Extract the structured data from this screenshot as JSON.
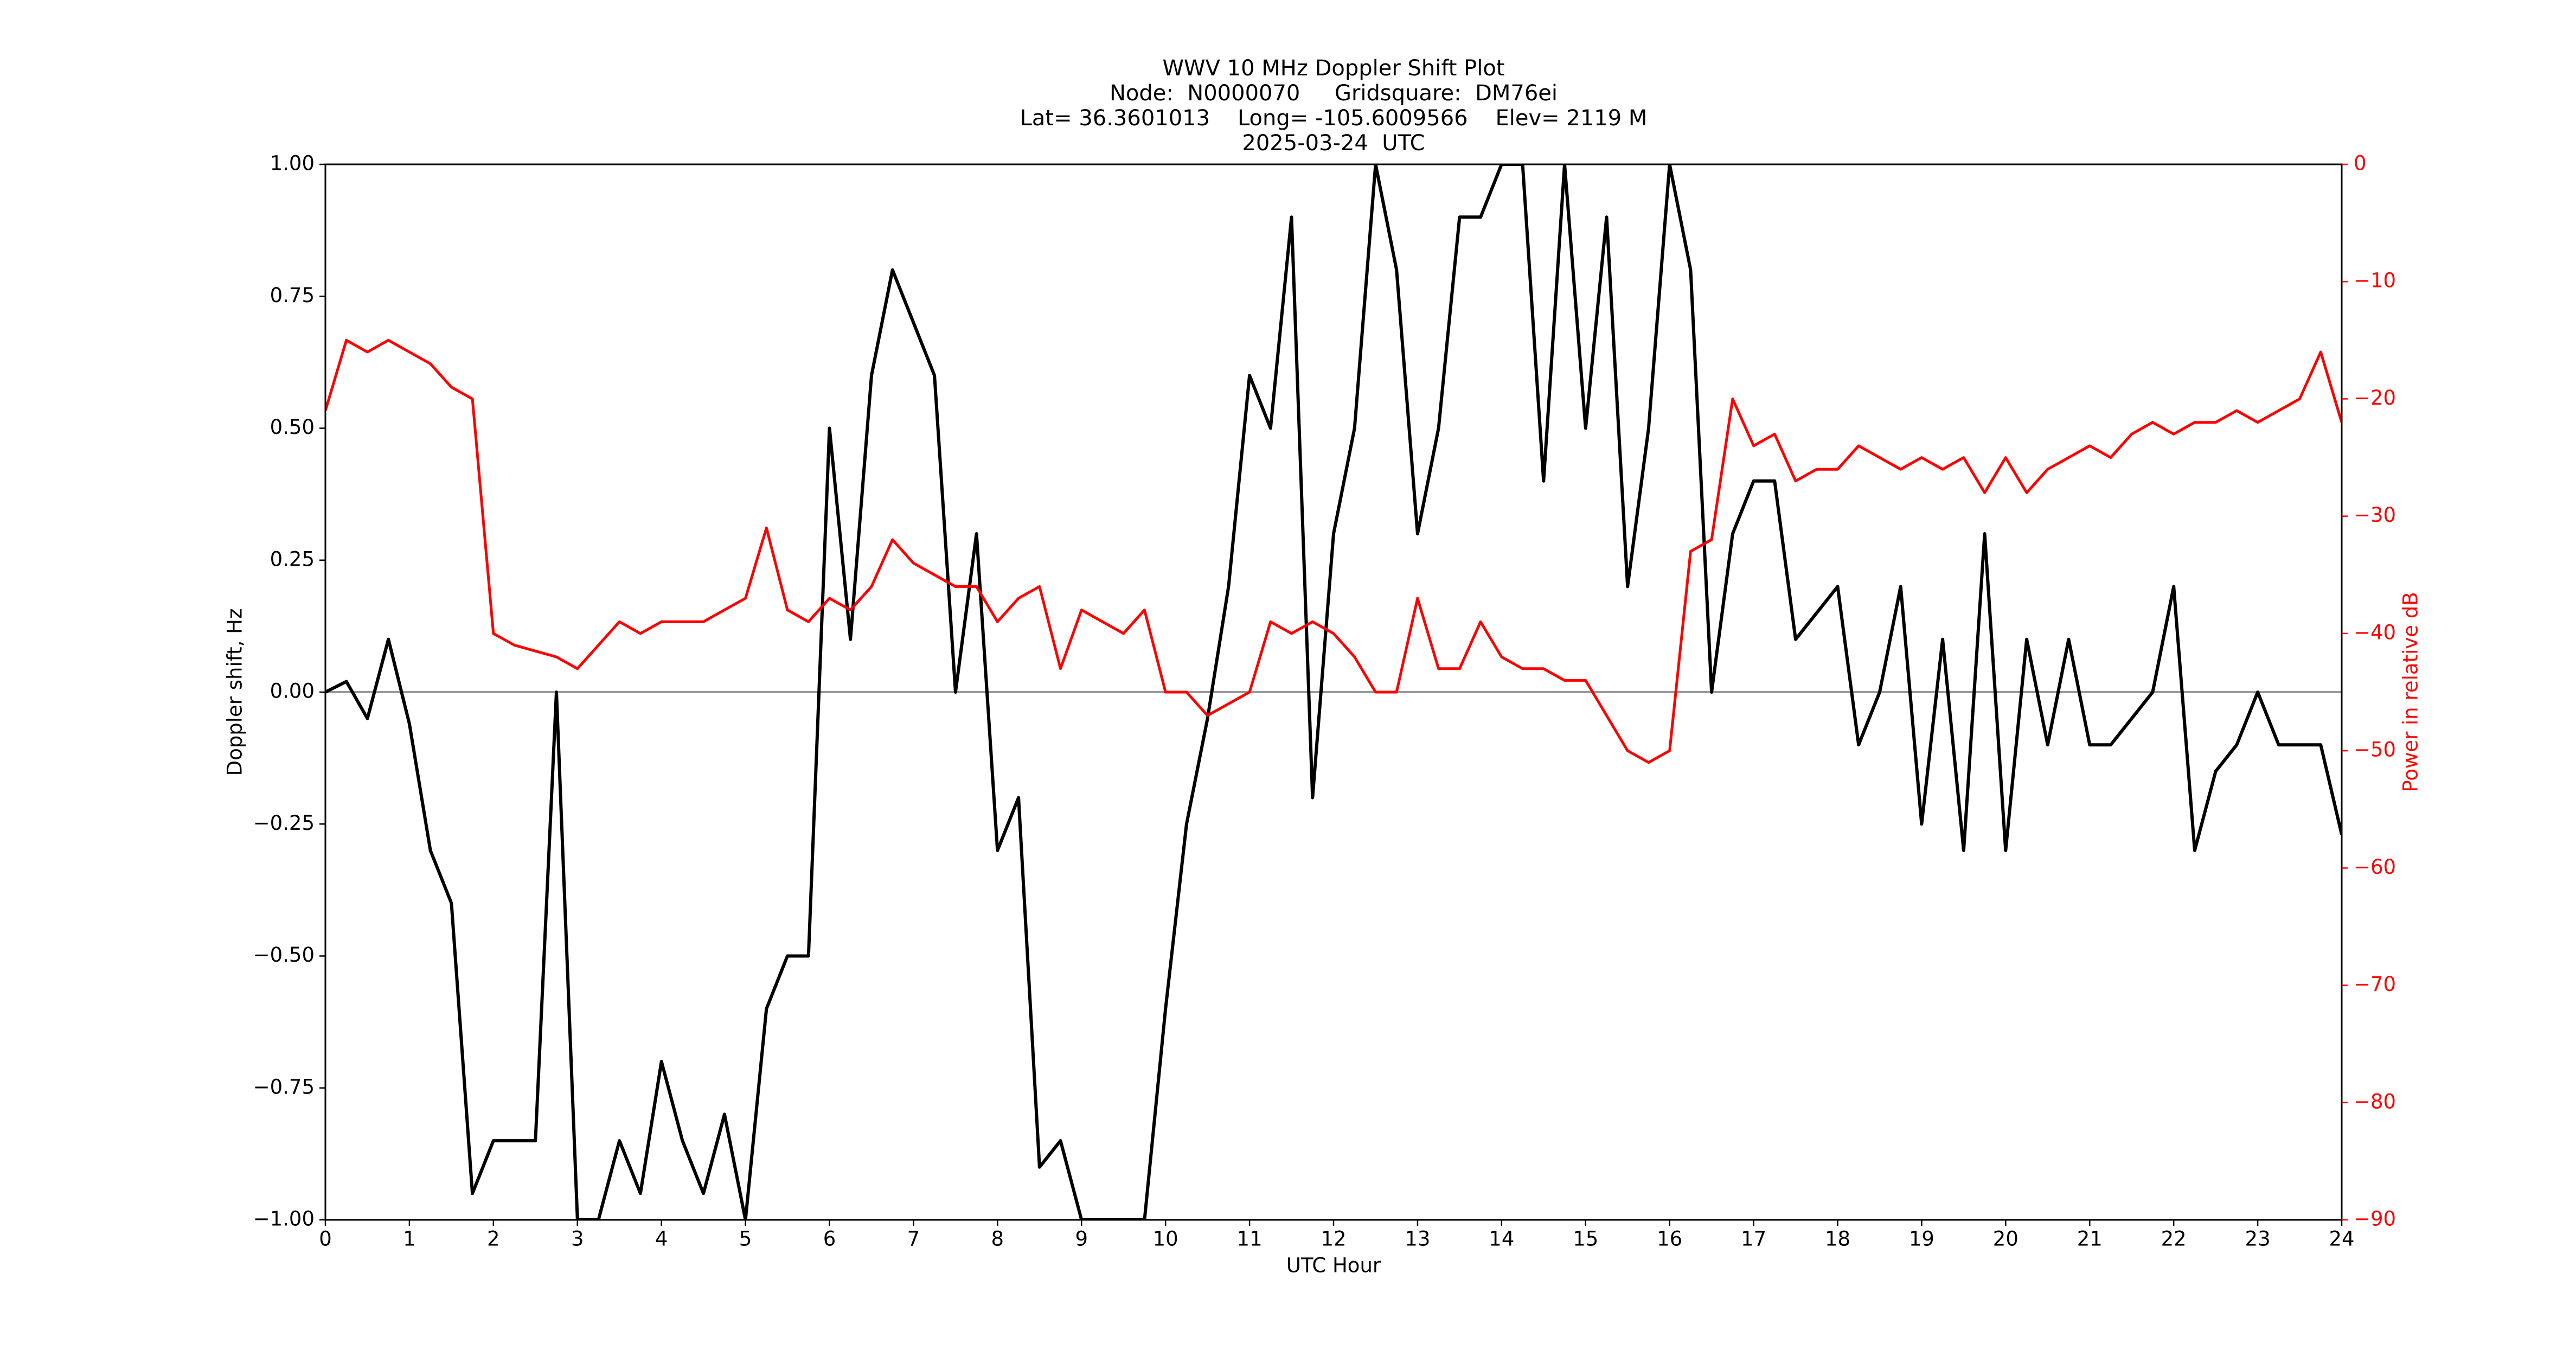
{
  "chart_data": {
    "type": "line",
    "title": "WWV 10 MHz Doppler Shift Plot",
    "subtitle_lines": [
      "Node:  N0000070     Gridsquare:  DM76ei",
      "Lat= 36.3601013    Long= -105.6009566    Elev= 2119 M",
      "2025-03-24  UTC"
    ],
    "xlabel": "UTC Hour",
    "ylabel": "Doppler shift, Hz",
    "y2label": "Power in relative dB",
    "xlim": [
      0,
      24
    ],
    "xticks": [
      0,
      1,
      2,
      3,
      4,
      5,
      6,
      7,
      8,
      9,
      10,
      11,
      12,
      13,
      14,
      15,
      16,
      17,
      18,
      19,
      20,
      21,
      22,
      23,
      24
    ],
    "ylim": [
      -1,
      1
    ],
    "yticks": [
      {
        "value": -1,
        "label": "−1.00"
      },
      {
        "value": -0.75,
        "label": "−0.75"
      },
      {
        "value": -0.5,
        "label": "−0.50"
      },
      {
        "value": -0.25,
        "label": "−0.25"
      },
      {
        "value": 0,
        "label": "0.00"
      },
      {
        "value": 0.25,
        "label": "0.25"
      },
      {
        "value": 0.5,
        "label": "0.50"
      },
      {
        "value": 0.75,
        "label": "0.75"
      },
      {
        "value": 1,
        "label": "1.00"
      }
    ],
    "y2lim": [
      -90,
      0
    ],
    "y2ticks": [
      {
        "value": -90,
        "label": "−90"
      },
      {
        "value": -80,
        "label": "−80"
      },
      {
        "value": -70,
        "label": "−70"
      },
      {
        "value": -60,
        "label": "−60"
      },
      {
        "value": -50,
        "label": "−50"
      },
      {
        "value": -40,
        "label": "−40"
      },
      {
        "value": -30,
        "label": "−30"
      },
      {
        "value": -20,
        "label": "−20"
      },
      {
        "value": -10,
        "label": "−10"
      },
      0
    ],
    "hlines": [
      0
    ],
    "x": [
      0,
      0.25,
      0.5,
      0.75,
      1,
      1.25,
      1.5,
      1.75,
      2,
      2.25,
      2.5,
      2.75,
      3,
      3.25,
      3.5,
      3.75,
      4,
      4.25,
      4.5,
      4.75,
      5,
      5.25,
      5.5,
      5.75,
      6,
      6.25,
      6.5,
      6.75,
      7,
      7.25,
      7.5,
      7.75,
      8,
      8.25,
      8.5,
      8.75,
      9,
      9.25,
      9.5,
      9.75,
      10,
      10.25,
      10.5,
      10.75,
      11,
      11.25,
      11.5,
      11.75,
      12,
      12.25,
      12.5,
      12.75,
      13,
      13.25,
      13.5,
      13.75,
      14,
      14.25,
      14.5,
      14.75,
      15,
      15.25,
      15.5,
      15.75,
      16,
      16.25,
      16.5,
      16.75,
      17,
      17.25,
      17.5,
      17.75,
      18,
      18.25,
      18.5,
      18.75,
      19,
      19.25,
      19.5,
      19.75,
      20,
      20.25,
      20.5,
      20.75,
      21,
      21.25,
      21.5,
      21.75,
      22,
      22.25,
      22.5,
      22.75,
      23,
      23.25,
      23.5,
      23.75,
      24
    ],
    "series": [
      {
        "color": "#000000",
        "values": [
          0,
          0.02,
          -0.05,
          0.1,
          -0.06,
          -0.3,
          -0.4,
          -0.95,
          -0.85,
          -0.85,
          -0.85,
          0,
          -1,
          -1,
          -0.85,
          -0.95,
          -0.7,
          -0.85,
          -0.95,
          -0.8,
          -1,
          -0.6,
          -0.5,
          -0.5,
          0.5,
          0.1,
          0.6,
          0.8,
          0.7,
          0.6,
          0,
          0.3,
          -0.3,
          -0.2,
          -0.9,
          -0.85,
          -1,
          -1,
          -1,
          -1,
          -0.6,
          -0.25,
          -0.05,
          0.2,
          0.6,
          0.5,
          0.9,
          -0.2,
          0.3,
          0.5,
          1,
          0.8,
          0.3,
          0.5,
          0.9,
          0.9,
          1,
          1,
          0.4,
          1,
          0.5,
          0.9,
          0.2,
          0.5,
          1,
          0.8,
          0,
          0.3,
          0.4,
          0.4,
          0.1,
          0.15,
          0.2,
          -0.1,
          0,
          0.2,
          -0.25,
          0.1,
          -0.3,
          0.3,
          -0.3,
          0.1,
          -0.1,
          0.1,
          -0.1,
          -0.1,
          -0.05,
          0,
          0.2,
          -0.3,
          -0.15,
          -0.1,
          0,
          -0.1,
          -0.1,
          -0.1,
          -0.27
        ]
      },
      {
        "color": "#ff0000",
        "axis": "y2",
        "values": [
          -21,
          -15,
          -16,
          -15,
          -16,
          -17,
          -19,
          -20,
          -40,
          -41,
          -41.5,
          -42,
          -43,
          -41,
          -39,
          -40,
          -39,
          -39,
          -39,
          -38,
          -37,
          -31,
          -38,
          -39,
          -37,
          -38,
          -36,
          -32,
          -34,
          -35,
          -36,
          -36,
          -39,
          -37,
          -36,
          -43,
          -38,
          -39,
          -40,
          -38,
          -45,
          -45,
          -47,
          -46,
          -45,
          -39,
          -40,
          -39,
          -40,
          -42,
          -45,
          -45,
          -37,
          -43,
          -43,
          -39,
          -42,
          -43,
          -43,
          -44,
          -44,
          -47,
          -50,
          -51,
          -50,
          -33,
          -32,
          -20,
          -24,
          -23,
          -27,
          -26,
          -26,
          -24,
          -25,
          -26,
          -25,
          -26,
          -25,
          -28,
          -25,
          -28,
          -26,
          -25,
          -24,
          -25,
          -23,
          -22,
          -23,
          -22,
          -22,
          -21,
          -22,
          -21,
          -20,
          -16,
          -22
        ]
      }
    ]
  }
}
